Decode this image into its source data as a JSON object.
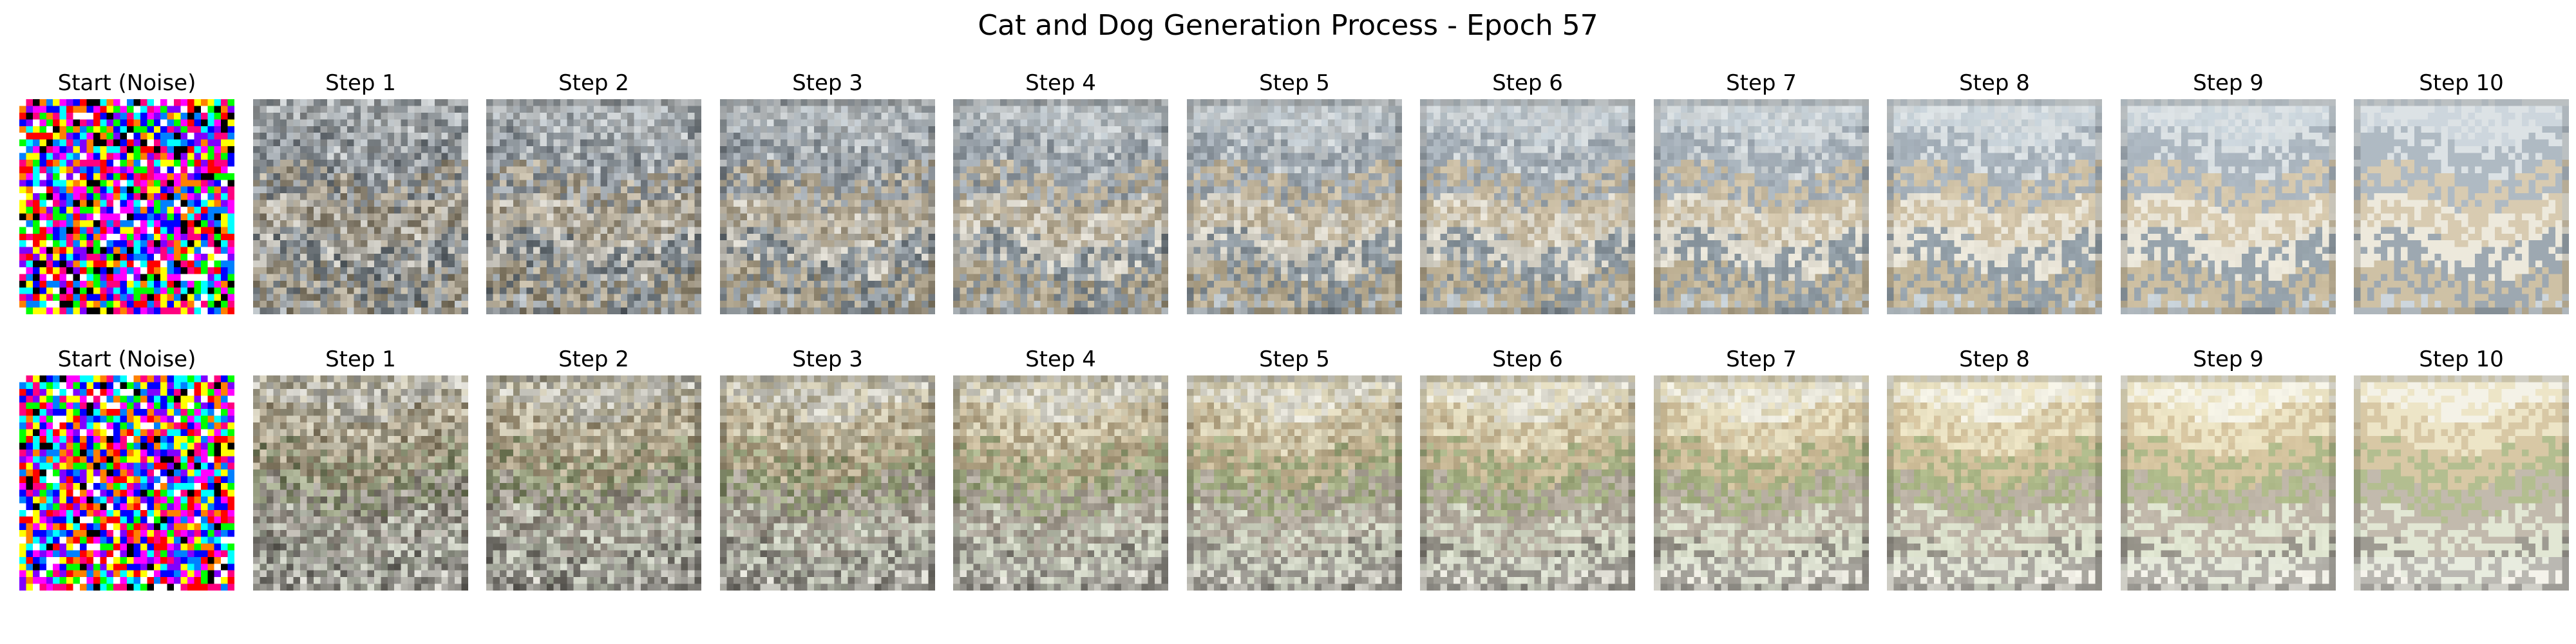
{
  "figure": {
    "title": "Cat and Dog Generation Process - Epoch 57"
  },
  "rows": [
    {
      "panels": [
        {
          "title": "Start (Noise)",
          "denoise": 0.0
        },
        {
          "title": "Step 1",
          "denoise": 0.1
        },
        {
          "title": "Step 2",
          "denoise": 0.2
        },
        {
          "title": "Step 3",
          "denoise": 0.3
        },
        {
          "title": "Step 4",
          "denoise": 0.4
        },
        {
          "title": "Step 5",
          "denoise": 0.5
        },
        {
          "title": "Step 6",
          "denoise": 0.6
        },
        {
          "title": "Step 7",
          "denoise": 0.7
        },
        {
          "title": "Step 8",
          "denoise": 0.8
        },
        {
          "title": "Step 9",
          "denoise": 0.9
        },
        {
          "title": "Step 10",
          "denoise": 1.0
        }
      ],
      "palette": [
        "#b7c6d0",
        "#cfd8dc",
        "#8a9aa8",
        "#c8b48c",
        "#e8e2cf",
        "#6d7f8c",
        "#b9a57a"
      ]
    },
    {
      "panels": [
        {
          "title": "Start (Noise)",
          "denoise": 0.0
        },
        {
          "title": "Step 1",
          "denoise": 0.1
        },
        {
          "title": "Step 2",
          "denoise": 0.2
        },
        {
          "title": "Step 3",
          "denoise": 0.3
        },
        {
          "title": "Step 4",
          "denoise": 0.4
        },
        {
          "title": "Step 5",
          "denoise": 0.5
        },
        {
          "title": "Step 6",
          "denoise": 0.6
        },
        {
          "title": "Step 7",
          "denoise": 0.7
        },
        {
          "title": "Step 8",
          "denoise": 0.8
        },
        {
          "title": "Step 9",
          "denoise": 0.9
        },
        {
          "title": "Step 10",
          "denoise": 1.0
        }
      ],
      "palette": [
        "#f4f1df",
        "#e8dcae",
        "#c9b07a",
        "#8fa05a",
        "#a79a86",
        "#d8e0c2",
        "#6f6a5c"
      ]
    }
  ]
}
